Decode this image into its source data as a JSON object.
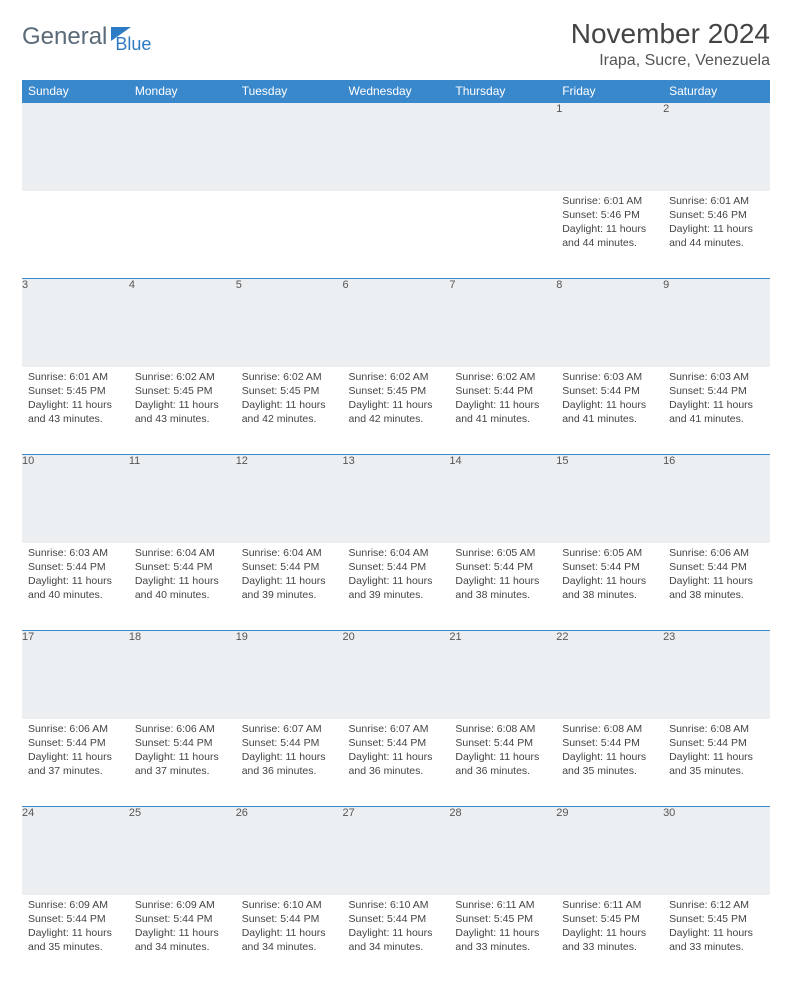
{
  "brand": {
    "part1": "General",
    "part2": "Blue"
  },
  "title": "November 2024",
  "location": "Irapa, Sucre, Venezuela",
  "colors": {
    "header_bg": "#3a88cc",
    "header_text": "#ffffff",
    "border": "#3a88cc",
    "daynum_bg": "#eceff2",
    "body_text": "#444444"
  },
  "day_headers": [
    "Sunday",
    "Monday",
    "Tuesday",
    "Wednesday",
    "Thursday",
    "Friday",
    "Saturday"
  ],
  "weeks": [
    [
      {
        "n": "",
        "sr": "",
        "ss": "",
        "dl": ""
      },
      {
        "n": "",
        "sr": "",
        "ss": "",
        "dl": ""
      },
      {
        "n": "",
        "sr": "",
        "ss": "",
        "dl": ""
      },
      {
        "n": "",
        "sr": "",
        "ss": "",
        "dl": ""
      },
      {
        "n": "",
        "sr": "",
        "ss": "",
        "dl": ""
      },
      {
        "n": "1",
        "sr": "Sunrise: 6:01 AM",
        "ss": "Sunset: 5:46 PM",
        "dl": "Daylight: 11 hours and 44 minutes."
      },
      {
        "n": "2",
        "sr": "Sunrise: 6:01 AM",
        "ss": "Sunset: 5:46 PM",
        "dl": "Daylight: 11 hours and 44 minutes."
      }
    ],
    [
      {
        "n": "3",
        "sr": "Sunrise: 6:01 AM",
        "ss": "Sunset: 5:45 PM",
        "dl": "Daylight: 11 hours and 43 minutes."
      },
      {
        "n": "4",
        "sr": "Sunrise: 6:02 AM",
        "ss": "Sunset: 5:45 PM",
        "dl": "Daylight: 11 hours and 43 minutes."
      },
      {
        "n": "5",
        "sr": "Sunrise: 6:02 AM",
        "ss": "Sunset: 5:45 PM",
        "dl": "Daylight: 11 hours and 42 minutes."
      },
      {
        "n": "6",
        "sr": "Sunrise: 6:02 AM",
        "ss": "Sunset: 5:45 PM",
        "dl": "Daylight: 11 hours and 42 minutes."
      },
      {
        "n": "7",
        "sr": "Sunrise: 6:02 AM",
        "ss": "Sunset: 5:44 PM",
        "dl": "Daylight: 11 hours and 41 minutes."
      },
      {
        "n": "8",
        "sr": "Sunrise: 6:03 AM",
        "ss": "Sunset: 5:44 PM",
        "dl": "Daylight: 11 hours and 41 minutes."
      },
      {
        "n": "9",
        "sr": "Sunrise: 6:03 AM",
        "ss": "Sunset: 5:44 PM",
        "dl": "Daylight: 11 hours and 41 minutes."
      }
    ],
    [
      {
        "n": "10",
        "sr": "Sunrise: 6:03 AM",
        "ss": "Sunset: 5:44 PM",
        "dl": "Daylight: 11 hours and 40 minutes."
      },
      {
        "n": "11",
        "sr": "Sunrise: 6:04 AM",
        "ss": "Sunset: 5:44 PM",
        "dl": "Daylight: 11 hours and 40 minutes."
      },
      {
        "n": "12",
        "sr": "Sunrise: 6:04 AM",
        "ss": "Sunset: 5:44 PM",
        "dl": "Daylight: 11 hours and 39 minutes."
      },
      {
        "n": "13",
        "sr": "Sunrise: 6:04 AM",
        "ss": "Sunset: 5:44 PM",
        "dl": "Daylight: 11 hours and 39 minutes."
      },
      {
        "n": "14",
        "sr": "Sunrise: 6:05 AM",
        "ss": "Sunset: 5:44 PM",
        "dl": "Daylight: 11 hours and 38 minutes."
      },
      {
        "n": "15",
        "sr": "Sunrise: 6:05 AM",
        "ss": "Sunset: 5:44 PM",
        "dl": "Daylight: 11 hours and 38 minutes."
      },
      {
        "n": "16",
        "sr": "Sunrise: 6:06 AM",
        "ss": "Sunset: 5:44 PM",
        "dl": "Daylight: 11 hours and 38 minutes."
      }
    ],
    [
      {
        "n": "17",
        "sr": "Sunrise: 6:06 AM",
        "ss": "Sunset: 5:44 PM",
        "dl": "Daylight: 11 hours and 37 minutes."
      },
      {
        "n": "18",
        "sr": "Sunrise: 6:06 AM",
        "ss": "Sunset: 5:44 PM",
        "dl": "Daylight: 11 hours and 37 minutes."
      },
      {
        "n": "19",
        "sr": "Sunrise: 6:07 AM",
        "ss": "Sunset: 5:44 PM",
        "dl": "Daylight: 11 hours and 36 minutes."
      },
      {
        "n": "20",
        "sr": "Sunrise: 6:07 AM",
        "ss": "Sunset: 5:44 PM",
        "dl": "Daylight: 11 hours and 36 minutes."
      },
      {
        "n": "21",
        "sr": "Sunrise: 6:08 AM",
        "ss": "Sunset: 5:44 PM",
        "dl": "Daylight: 11 hours and 36 minutes."
      },
      {
        "n": "22",
        "sr": "Sunrise: 6:08 AM",
        "ss": "Sunset: 5:44 PM",
        "dl": "Daylight: 11 hours and 35 minutes."
      },
      {
        "n": "23",
        "sr": "Sunrise: 6:08 AM",
        "ss": "Sunset: 5:44 PM",
        "dl": "Daylight: 11 hours and 35 minutes."
      }
    ],
    [
      {
        "n": "24",
        "sr": "Sunrise: 6:09 AM",
        "ss": "Sunset: 5:44 PM",
        "dl": "Daylight: 11 hours and 35 minutes."
      },
      {
        "n": "25",
        "sr": "Sunrise: 6:09 AM",
        "ss": "Sunset: 5:44 PM",
        "dl": "Daylight: 11 hours and 34 minutes."
      },
      {
        "n": "26",
        "sr": "Sunrise: 6:10 AM",
        "ss": "Sunset: 5:44 PM",
        "dl": "Daylight: 11 hours and 34 minutes."
      },
      {
        "n": "27",
        "sr": "Sunrise: 6:10 AM",
        "ss": "Sunset: 5:44 PM",
        "dl": "Daylight: 11 hours and 34 minutes."
      },
      {
        "n": "28",
        "sr": "Sunrise: 6:11 AM",
        "ss": "Sunset: 5:45 PM",
        "dl": "Daylight: 11 hours and 33 minutes."
      },
      {
        "n": "29",
        "sr": "Sunrise: 6:11 AM",
        "ss": "Sunset: 5:45 PM",
        "dl": "Daylight: 11 hours and 33 minutes."
      },
      {
        "n": "30",
        "sr": "Sunrise: 6:12 AM",
        "ss": "Sunset: 5:45 PM",
        "dl": "Daylight: 11 hours and 33 minutes."
      }
    ]
  ]
}
